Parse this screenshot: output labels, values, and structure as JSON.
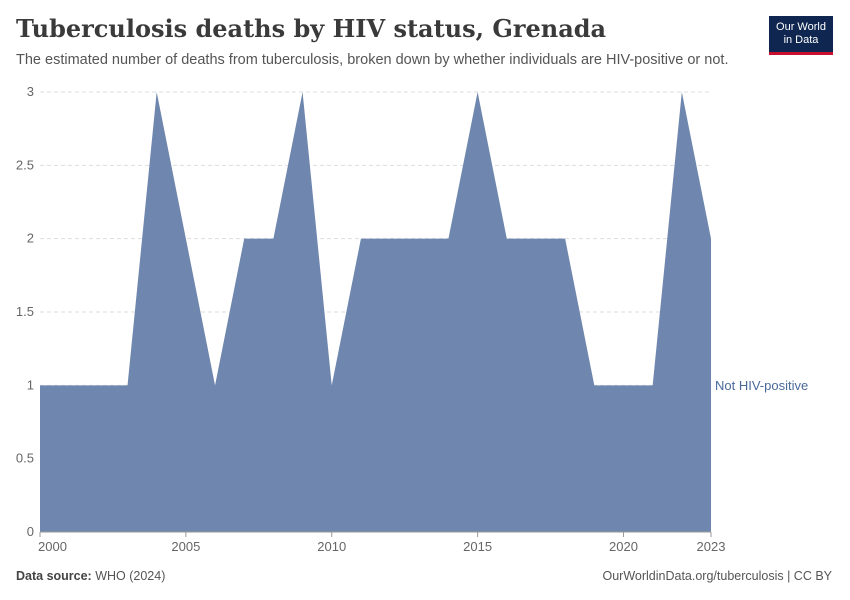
{
  "header": {
    "title": "Tuberculosis deaths by HIV status, Grenada",
    "subtitle": "The estimated number of deaths from tuberculosis, broken down by whether individuals are HIV-positive or not.",
    "logo_line1": "Our World",
    "logo_line2": "in Data"
  },
  "footer": {
    "source_label": "Data source:",
    "source_value": "WHO (2024)",
    "credit": "OurWorldinData.org/tuberculosis | CC BY"
  },
  "colors": {
    "series": "#6f87ae",
    "label": "#4a6a9c",
    "grid": "#dddddd",
    "axis_text": "#666666"
  },
  "chart_data": {
    "type": "area",
    "title": "Tuberculosis deaths by HIV status, Grenada",
    "xlabel": "",
    "ylabel": "",
    "xlim": [
      2000,
      2023
    ],
    "ylim": [
      0,
      3
    ],
    "x": [
      2000,
      2001,
      2002,
      2003,
      2004,
      2005,
      2006,
      2007,
      2008,
      2009,
      2010,
      2011,
      2012,
      2013,
      2014,
      2015,
      2016,
      2017,
      2018,
      2019,
      2020,
      2021,
      2022,
      2023
    ],
    "x_ticks": [
      "2000",
      "2005",
      "2010",
      "2015",
      "2020",
      "2023"
    ],
    "y_ticks": [
      "0",
      "0.5",
      "1",
      "1.5",
      "2",
      "2.5",
      "3"
    ],
    "grid": "horizontal dashed",
    "series": [
      {
        "name": "Not HIV-positive",
        "values": [
          1,
          1,
          1,
          1,
          3,
          2,
          1,
          2,
          2,
          3,
          1,
          2,
          2,
          2,
          2,
          3,
          2,
          2,
          2,
          1,
          1,
          1,
          3,
          2
        ]
      }
    ]
  }
}
